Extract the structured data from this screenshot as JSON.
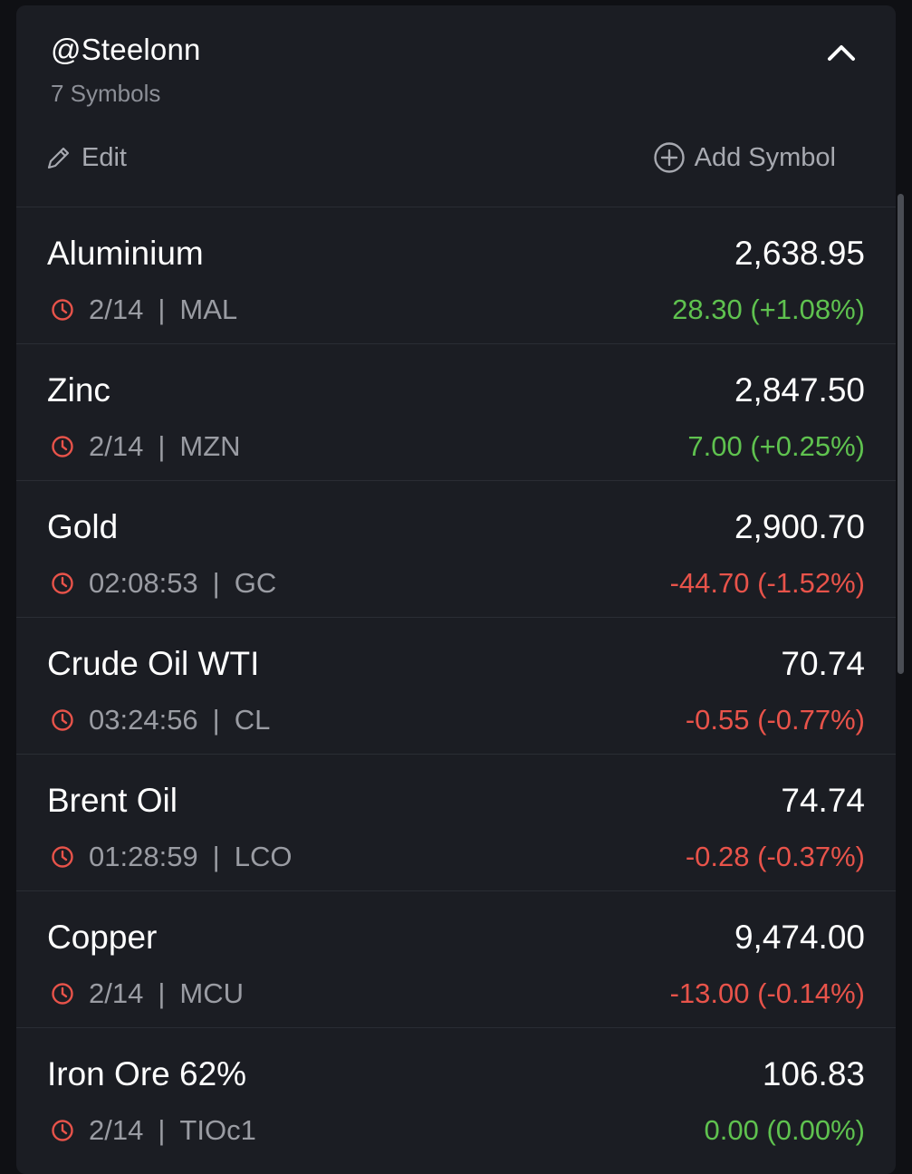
{
  "watchlist": {
    "title": "@Steelonn",
    "subtitle": "7 Symbols",
    "edit_label": "Edit",
    "add_label": "Add Symbol",
    "collapse_icon": "chevron-up-icon"
  },
  "colors": {
    "background": "#1b1d23",
    "positive": "#5fc24f",
    "negative": "#e8534a",
    "clock": "#e8534a",
    "muted": "#9a9ca3"
  },
  "symbols": [
    {
      "name": "Aluminium",
      "price": "2,638.95",
      "time": "2/14",
      "ticker": "MAL",
      "change": "28.30 (+1.08%)",
      "direction": "up"
    },
    {
      "name": "Zinc",
      "price": "2,847.50",
      "time": "2/14",
      "ticker": "MZN",
      "change": "7.00 (+0.25%)",
      "direction": "up"
    },
    {
      "name": "Gold",
      "price": "2,900.70",
      "time": "02:08:53",
      "ticker": "GC",
      "change": "-44.70 (-1.52%)",
      "direction": "down"
    },
    {
      "name": "Crude Oil WTI",
      "price": "70.74",
      "time": "03:24:56",
      "ticker": "CL",
      "change": "-0.55 (-0.77%)",
      "direction": "down"
    },
    {
      "name": "Brent Oil",
      "price": "74.74",
      "time": "01:28:59",
      "ticker": "LCO",
      "change": "-0.28 (-0.37%)",
      "direction": "down"
    },
    {
      "name": "Copper",
      "price": "9,474.00",
      "time": "2/14",
      "ticker": "MCU",
      "change": "-13.00 (-0.14%)",
      "direction": "down"
    },
    {
      "name": "Iron Ore 62%",
      "price": "106.83",
      "time": "2/14",
      "ticker": "TIOc1",
      "change": "0.00 (0.00%)",
      "direction": "up"
    }
  ]
}
